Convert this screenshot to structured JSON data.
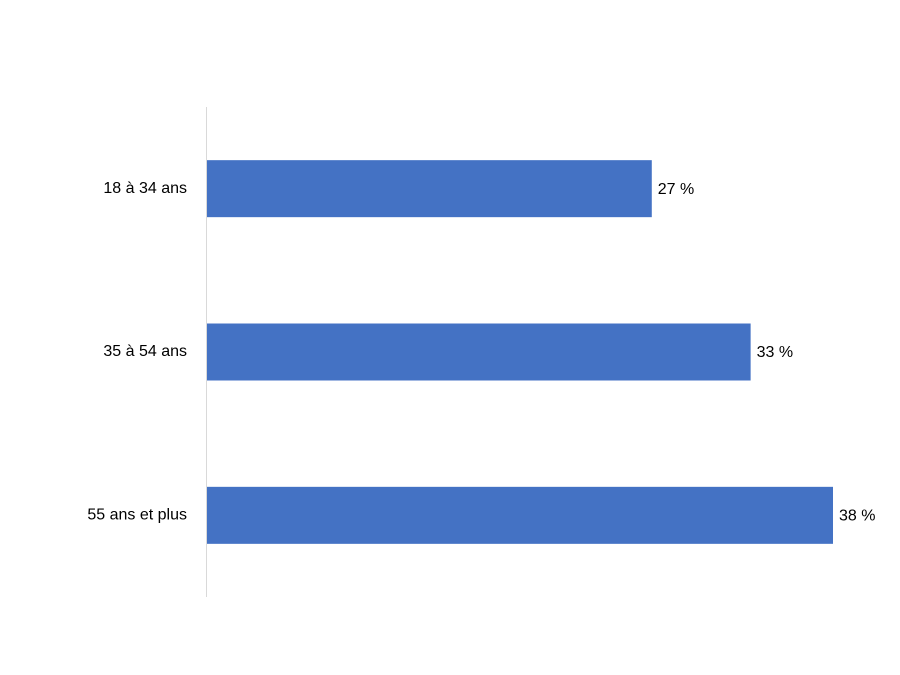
{
  "chart_data": {
    "type": "bar",
    "orientation": "horizontal",
    "categories": [
      "18 à 34 ans",
      "35 à 54 ans",
      "55 ans et plus"
    ],
    "values": [
      27,
      33,
      38
    ],
    "value_labels": [
      "27 %",
      "33 %",
      "38 %"
    ],
    "color": "#4472c4"
  }
}
